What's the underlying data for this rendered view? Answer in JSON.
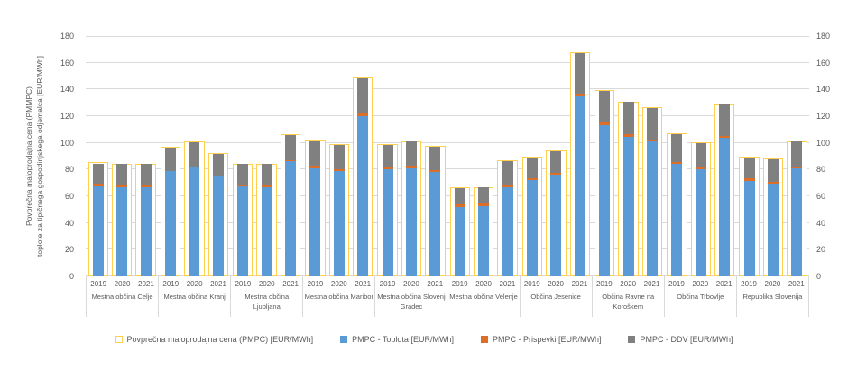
{
  "chart_data": {
    "type": "bar",
    "stacked": true,
    "title": "",
    "y_axis": {
      "title_line1": "Povprečna maloprodajna cena (PMMPC)",
      "title_line2": "toplote za tipičnega gospodinjskega odjemalca  [EUR/MWh]",
      "min": 0,
      "max": 180,
      "step": 20,
      "ticks": [
        0,
        20,
        40,
        60,
        80,
        100,
        120,
        140,
        160,
        180
      ],
      "dual_axis": true,
      "grid": true
    },
    "years": [
      "2019",
      "2020",
      "2021"
    ],
    "series_keys": [
      "toplota",
      "prispevki",
      "ddv"
    ],
    "legend": [
      {
        "label": "Povprečna maloprodajna cena (PMPC) [EUR/MWh]",
        "type": "outline",
        "color": "#FFCF4D"
      },
      {
        "label": "PMPC - Toplota [EUR/MWh]",
        "type": "fill",
        "color": "#5B9BD5",
        "key": "toplota"
      },
      {
        "label": "PMPC - Prispevki [EUR/MWh]",
        "type": "fill",
        "color": "#DD6E28",
        "key": "prispevki"
      },
      {
        "label": "PMPC - DDV [EUR/MWh]",
        "type": "fill",
        "color": "#808080",
        "key": "ddv"
      }
    ],
    "groups": [
      {
        "name": "Mestna občina Celje",
        "bars": [
          {
            "year": "2019",
            "toplota": 67.5,
            "prispevki": 2.0,
            "ddv": 15.0,
            "pmpc": 85.5
          },
          {
            "year": "2020",
            "toplota": 67.0,
            "prispevki": 1.5,
            "ddv": 15.5,
            "pmpc": 84.5
          },
          {
            "year": "2021",
            "toplota": 67.0,
            "prispevki": 1.5,
            "ddv": 15.5,
            "pmpc": 84.5
          }
        ]
      },
      {
        "name": "Mestna občina Kranj",
        "bars": [
          {
            "year": "2019",
            "toplota": 79.0,
            "prispevki": 0.0,
            "ddv": 17.5,
            "pmpc": 97.0
          },
          {
            "year": "2020",
            "toplota": 82.5,
            "prispevki": 0.0,
            "ddv": 18.0,
            "pmpc": 101.0
          },
          {
            "year": "2021",
            "toplota": 75.5,
            "prispevki": 0.0,
            "ddv": 16.5,
            "pmpc": 92.5
          }
        ]
      },
      {
        "name": "Mestna občina Ljubljana",
        "bars": [
          {
            "year": "2019",
            "toplota": 67.5,
            "prispevki": 1.5,
            "ddv": 15.0,
            "pmpc": 84.5
          },
          {
            "year": "2020",
            "toplota": 67.0,
            "prispevki": 1.5,
            "ddv": 15.5,
            "pmpc": 84.5
          },
          {
            "year": "2021",
            "toplota": 86.0,
            "prispevki": 1.0,
            "ddv": 19.0,
            "pmpc": 106.5
          }
        ]
      },
      {
        "name": "Mestna občina Maribor",
        "bars": [
          {
            "year": "2019",
            "toplota": 81.0,
            "prispevki": 2.0,
            "ddv": 18.0,
            "pmpc": 101.5
          },
          {
            "year": "2020",
            "toplota": 79.0,
            "prispevki": 1.5,
            "ddv": 18.0,
            "pmpc": 99.0
          },
          {
            "year": "2021",
            "toplota": 120.0,
            "prispevki": 2.0,
            "ddv": 26.5,
            "pmpc": 149.0
          }
        ]
      },
      {
        "name": "Mestna občina Slovenj Gradec",
        "bars": [
          {
            "year": "2019",
            "toplota": 80.0,
            "prispevki": 1.5,
            "ddv": 17.0,
            "pmpc": 99.0
          },
          {
            "year": "2020",
            "toplota": 81.0,
            "prispevki": 2.0,
            "ddv": 18.0,
            "pmpc": 101.0
          },
          {
            "year": "2021",
            "toplota": 78.0,
            "prispevki": 1.5,
            "ddv": 17.5,
            "pmpc": 97.5
          }
        ]
      },
      {
        "name": "Mestna občina Velenje",
        "bars": [
          {
            "year": "2019",
            "toplota": 52.0,
            "prispevki": 2.0,
            "ddv": 12.0,
            "pmpc": 66.5
          },
          {
            "year": "2020",
            "toplota": 52.5,
            "prispevki": 2.0,
            "ddv": 12.0,
            "pmpc": 67.0
          },
          {
            "year": "2021",
            "toplota": 67.0,
            "prispevki": 1.5,
            "ddv": 18.0,
            "pmpc": 87.0
          }
        ]
      },
      {
        "name": "Občina Jesenice",
        "bars": [
          {
            "year": "2019",
            "toplota": 72.0,
            "prispevki": 1.7,
            "ddv": 15.3,
            "pmpc": 89.5
          },
          {
            "year": "2020",
            "toplota": 76.0,
            "prispevki": 1.7,
            "ddv": 16.3,
            "pmpc": 94.5
          },
          {
            "year": "2021",
            "toplota": 135.0,
            "prispevki": 2.0,
            "ddv": 30.0,
            "pmpc": 168.0
          }
        ]
      },
      {
        "name": "Občina Ravne na Koroškem",
        "bars": [
          {
            "year": "2019",
            "toplota": 113.0,
            "prispevki": 2.0,
            "ddv": 24.0,
            "pmpc": 139.5
          },
          {
            "year": "2020",
            "toplota": 104.5,
            "prispevki": 2.0,
            "ddv": 24.0,
            "pmpc": 131.0
          },
          {
            "year": "2021",
            "toplota": 101.0,
            "prispevki": 1.5,
            "ddv": 23.5,
            "pmpc": 126.5
          }
        ]
      },
      {
        "name": "Občina Trbovlje",
        "bars": [
          {
            "year": "2019",
            "toplota": 84.0,
            "prispevki": 1.5,
            "ddv": 21.0,
            "pmpc": 107.0
          },
          {
            "year": "2020",
            "toplota": 80.0,
            "prispevki": 1.5,
            "ddv": 18.5,
            "pmpc": 100.5
          },
          {
            "year": "2021",
            "toplota": 104.0,
            "prispevki": 1.5,
            "ddv": 23.0,
            "pmpc": 129.0
          }
        ]
      },
      {
        "name": "Republika Slovenija",
        "bars": [
          {
            "year": "2019",
            "toplota": 71.5,
            "prispevki": 1.7,
            "ddv": 15.8,
            "pmpc": 89.5
          },
          {
            "year": "2020",
            "toplota": 69.5,
            "prispevki": 1.5,
            "ddv": 16.5,
            "pmpc": 88.0
          },
          {
            "year": "2021",
            "toplota": 81.0,
            "prispevki": 1.5,
            "ddv": 18.5,
            "pmpc": 101.0
          }
        ]
      }
    ],
    "layout_hints": {
      "legend_position": "bottom",
      "grid_color": "#D9D9D9",
      "axis_text_color": "#595959",
      "background": "#FFFFFF"
    }
  }
}
